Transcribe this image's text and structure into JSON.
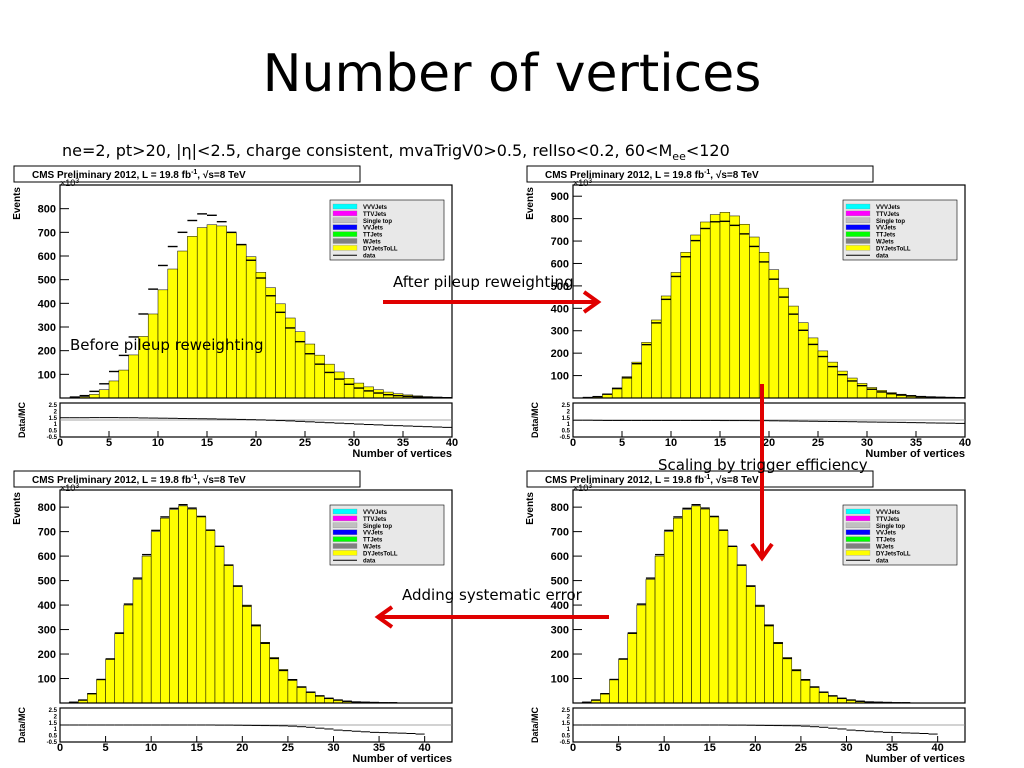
{
  "slide": {
    "title": "Number of vertices",
    "subtitle_main": "ne=2, pt>20, |η|<2.5, charge consistent, mvaTrigV0>0.5, relIso<0.2, 60<M",
    "subtitle_sub": "ee",
    "subtitle_tail": "<120"
  },
  "annotations": {
    "before": "Before pileup reweighting",
    "after": "After pileup reweighting",
    "trigger": "Scaling by trigger efficiency",
    "syst": "Adding systematic error"
  },
  "colors": {
    "mc_fill": "#ffff00",
    "arrow": "#e00000",
    "legend_bg": "#e8e8e8"
  },
  "common": {
    "header": "CMS Preliminary 2012, L = 19.8 fb",
    "header_sup": "-1",
    "header_tail": ", √s=8 TeV",
    "ylabel": "Events",
    "xlabel": "Number of vertices",
    "ratio_label": "Data/MC",
    "exponent": "×10",
    "exponent_sup": "3",
    "legend": [
      {
        "label": "VVVJets",
        "color": "#00ffff"
      },
      {
        "label": "TTVJets",
        "color": "#ff00ff"
      },
      {
        "label": "Single top",
        "color": "#c0c0c0"
      },
      {
        "label": "VVJets",
        "color": "#0000ff"
      },
      {
        "label": "TTJets",
        "color": "#00ff00"
      },
      {
        "label": "WJets",
        "color": "#808080"
      },
      {
        "label": "DYJetsToLL",
        "color": "#ffff00"
      },
      {
        "label": "data",
        "color": "#000000"
      }
    ],
    "ratio_ticks": [
      "2.5",
      "2",
      "1.5",
      "1",
      "0.5",
      "-0.5"
    ]
  },
  "chart_data": [
    {
      "type": "bar",
      "title": "CMS Preliminary 2012, L = 19.8 fb-1, √s=8 TeV",
      "xlabel": "Number of vertices",
      "ylabel": "Events",
      "xlim": [
        0,
        40
      ],
      "ylim": [
        0,
        900
      ],
      "yticks": [
        100,
        200,
        300,
        400,
        500,
        600,
        700,
        800
      ],
      "xticks": [
        0,
        5,
        10,
        15,
        20,
        25,
        30,
        35,
        40
      ],
      "mc": [
        0,
        2,
        5,
        15,
        35,
        72,
        118,
        182,
        260,
        355,
        457,
        545,
        621,
        683,
        720,
        732,
        727,
        698,
        650,
        597,
        531,
        466,
        398,
        338,
        280,
        228,
        181,
        143,
        110,
        83,
        63,
        47,
        35,
        25,
        18,
        13,
        9,
        6,
        4,
        3
      ],
      "data": [
        0,
        4,
        10,
        28,
        60,
        112,
        180,
        258,
        355,
        460,
        560,
        640,
        700,
        750,
        778,
        772,
        745,
        700,
        648,
        582,
        507,
        432,
        362,
        296,
        238,
        187,
        143,
        108,
        80,
        58,
        42,
        30,
        21,
        14,
        10,
        7,
        5,
        3,
        2,
        1
      ],
      "ratio": [
        1.2,
        1.2,
        1.2,
        1.21,
        1.21,
        1.21,
        1.2,
        1.2,
        1.18,
        1.17,
        1.16,
        1.15,
        1.13,
        1.12,
        1.11,
        1.1,
        1.08,
        1.07,
        1.05,
        1.03,
        1.01,
        0.98,
        0.95,
        0.92,
        0.88,
        0.84,
        0.8,
        0.76,
        0.72,
        0.68,
        0.64,
        0.6,
        0.57,
        0.53,
        0.5,
        0.47,
        0.44,
        0.41,
        0.38,
        0.35
      ]
    },
    {
      "type": "bar",
      "title": "CMS Preliminary 2012, L = 19.8 fb-1, √s=8 TeV",
      "xlabel": "Number of vertices",
      "ylabel": "Events",
      "xlim": [
        0,
        40
      ],
      "ylim": [
        0,
        950
      ],
      "yticks": [
        100,
        200,
        300,
        400,
        500,
        600,
        700,
        800,
        900
      ],
      "xticks": [
        0,
        5,
        10,
        15,
        20,
        25,
        30,
        35,
        40
      ],
      "mc": [
        0,
        2,
        6,
        18,
        45,
        95,
        160,
        248,
        348,
        455,
        560,
        650,
        727,
        785,
        818,
        828,
        812,
        775,
        718,
        650,
        572,
        490,
        410,
        336,
        268,
        210,
        160,
        120,
        89,
        65,
        47,
        34,
        24,
        17,
        12,
        8,
        6,
        4,
        3,
        2
      ],
      "data": [
        0,
        2,
        6,
        17,
        42,
        90,
        153,
        238,
        335,
        440,
        542,
        630,
        702,
        756,
        786,
        788,
        770,
        732,
        676,
        607,
        530,
        450,
        374,
        302,
        239,
        185,
        140,
        104,
        76,
        55,
        39,
        27,
        19,
        13,
        9,
        6,
        4,
        3,
        2,
        1
      ],
      "ratio": [
        0.98,
        0.98,
        0.97,
        0.96,
        0.96,
        0.96,
        0.96,
        0.96,
        0.96,
        0.96,
        0.96,
        0.96,
        0.96,
        0.96,
        0.96,
        0.95,
        0.95,
        0.95,
        0.94,
        0.94,
        0.93,
        0.92,
        0.91,
        0.9,
        0.89,
        0.88,
        0.87,
        0.86,
        0.85,
        0.83,
        0.82,
        0.81,
        0.8,
        0.79,
        0.77,
        0.76,
        0.74,
        0.73,
        0.72,
        0.7
      ]
    },
    {
      "type": "bar",
      "title": "CMS Preliminary 2012, L = 19.8 fb-1, √s=8 TeV",
      "xlabel": "Number of vertices",
      "ylabel": "Events",
      "xlim": [
        0,
        43
      ],
      "ylim": [
        0,
        870
      ],
      "yticks": [
        100,
        200,
        300,
        400,
        500,
        600,
        700,
        800
      ],
      "xticks": [
        0,
        5,
        10,
        15,
        20,
        25,
        30,
        35,
        40
      ],
      "mc": [
        0,
        3,
        12,
        38,
        95,
        178,
        283,
        400,
        505,
        600,
        700,
        755,
        790,
        805,
        792,
        760,
        705,
        640,
        565,
        480,
        400,
        320,
        248,
        186,
        137,
        97,
        67,
        46,
        30,
        20,
        13,
        8,
        5,
        3,
        2,
        1,
        1,
        0,
        0,
        0,
        0,
        0,
        0
      ],
      "data": [
        0,
        3,
        12,
        38,
        96,
        180,
        286,
        404,
        510,
        606,
        705,
        760,
        795,
        810,
        796,
        762,
        706,
        640,
        563,
        477,
        396,
        316,
        244,
        182,
        133,
        94,
        65,
        44,
        29,
        19,
        12,
        7,
        4,
        3,
        2,
        1,
        1,
        0,
        0,
        0,
        0,
        0,
        0
      ],
      "ratio": [
        1.0,
        1.0,
        1.0,
        1.0,
        1.0,
        1.0,
        1.0,
        1.0,
        1.0,
        1.0,
        1.0,
        1.0,
        1.0,
        1.0,
        1.0,
        1.0,
        1.0,
        0.99,
        0.99,
        0.98,
        0.97,
        0.96,
        0.95,
        0.94,
        0.93,
        0.9,
        0.85,
        0.8,
        0.72,
        0.65,
        0.55,
        0.5,
        0.45,
        0.4,
        0.35,
        0.33,
        0.3,
        0.28,
        0.25,
        0.2,
        0,
        0,
        0
      ]
    },
    {
      "type": "bar",
      "title": "CMS Preliminary 2012, L = 19.8 fb-1, √s=8 TeV",
      "xlabel": "Number of vertices",
      "ylabel": "Events",
      "xlim": [
        0,
        43
      ],
      "ylim": [
        0,
        870
      ],
      "yticks": [
        100,
        200,
        300,
        400,
        500,
        600,
        700,
        800
      ],
      "xticks": [
        0,
        5,
        10,
        15,
        20,
        25,
        30,
        35,
        40
      ],
      "mc": [
        0,
        3,
        12,
        38,
        95,
        178,
        283,
        400,
        505,
        600,
        700,
        755,
        790,
        805,
        792,
        760,
        705,
        640,
        565,
        480,
        400,
        320,
        248,
        186,
        137,
        97,
        67,
        46,
        30,
        20,
        13,
        8,
        5,
        3,
        2,
        1,
        1,
        0,
        0,
        0,
        0,
        0,
        0
      ],
      "data": [
        0,
        3,
        12,
        38,
        96,
        180,
        286,
        404,
        510,
        606,
        705,
        760,
        795,
        810,
        796,
        762,
        706,
        640,
        563,
        477,
        396,
        316,
        244,
        182,
        133,
        94,
        65,
        44,
        29,
        19,
        12,
        7,
        4,
        3,
        2,
        1,
        1,
        0,
        0,
        0,
        0,
        0,
        0
      ],
      "ratio": [
        1.0,
        1.0,
        1.0,
        1.0,
        1.0,
        1.0,
        1.0,
        1.0,
        1.0,
        1.0,
        1.0,
        1.0,
        1.0,
        1.0,
        1.0,
        1.0,
        1.0,
        0.99,
        0.99,
        0.98,
        0.97,
        0.96,
        0.95,
        0.94,
        0.93,
        0.9,
        0.85,
        0.8,
        0.72,
        0.65,
        0.55,
        0.5,
        0.45,
        0.4,
        0.35,
        0.33,
        0.3,
        0.28,
        0.25,
        0.2,
        0,
        0,
        0
      ]
    }
  ]
}
